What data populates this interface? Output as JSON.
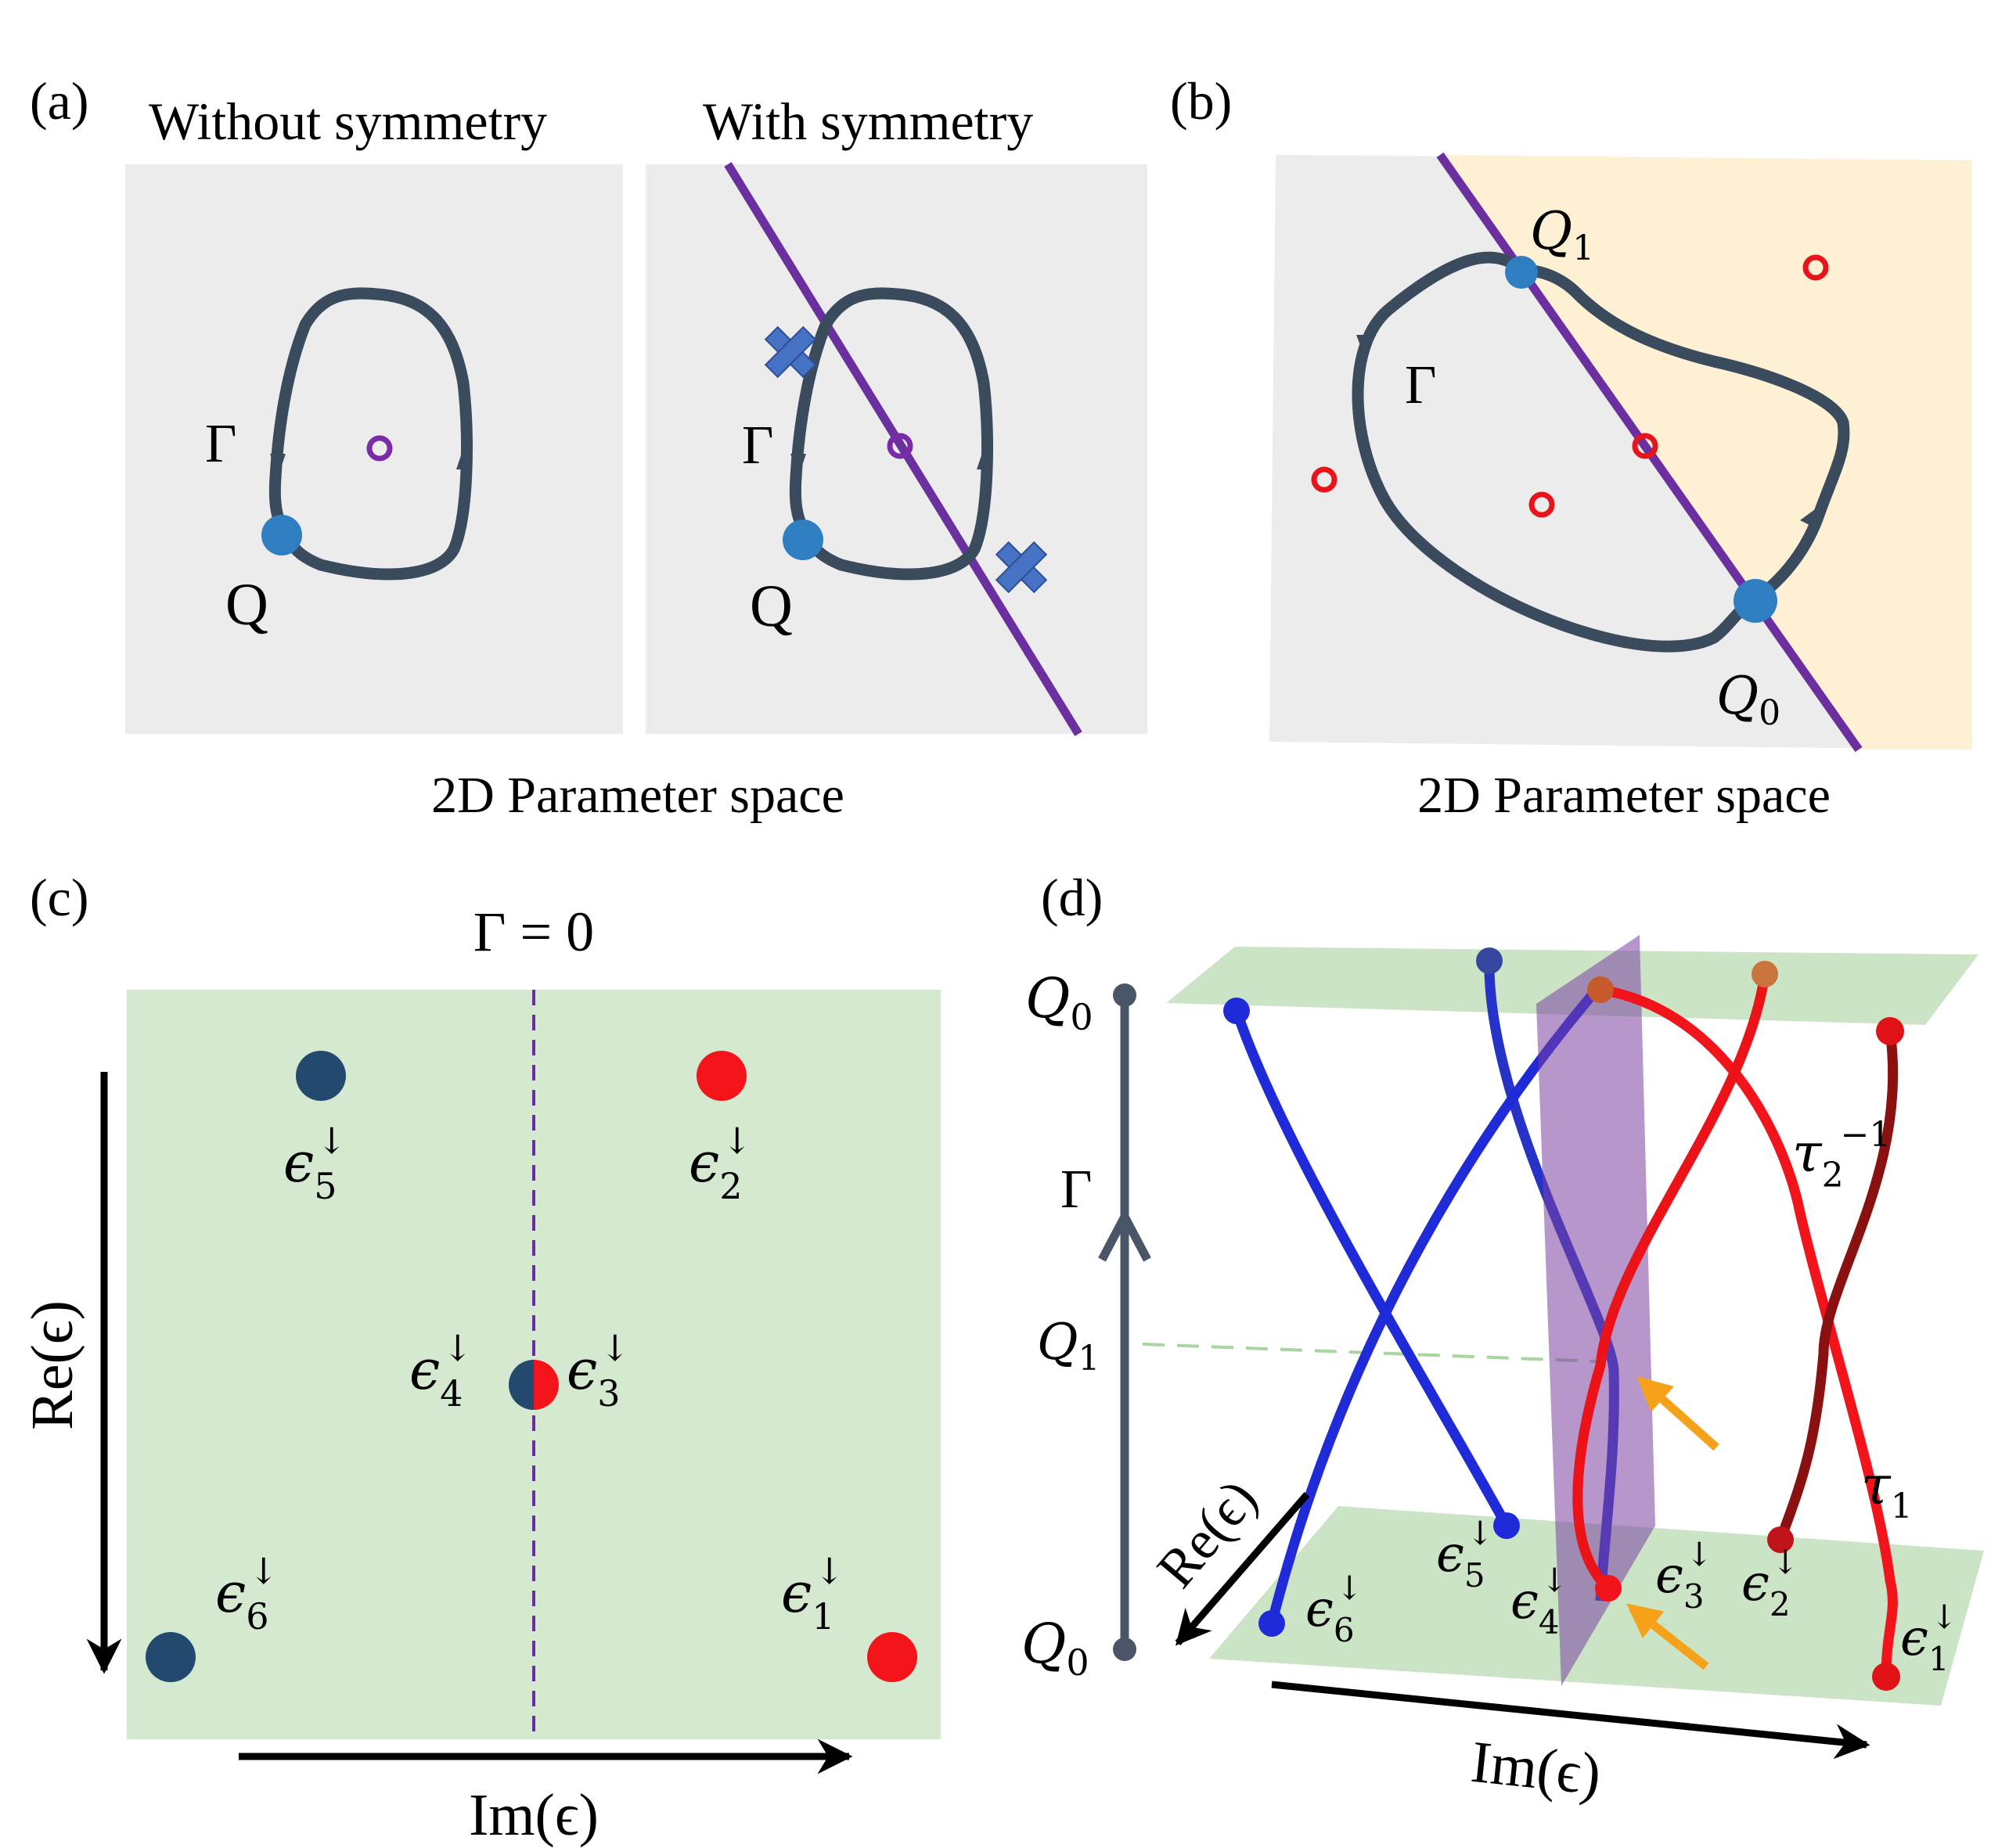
{
  "panel_a": {
    "label": "(a)",
    "left_title": "Without symmetry",
    "right_title": "With symmetry",
    "gamma": "Γ",
    "point": "Q",
    "caption": "2D Parameter space"
  },
  "panel_b": {
    "label": "(b)",
    "gamma": "Γ",
    "q1": "Q",
    "q1_sub": "1",
    "q0": "Q",
    "q0_sub": "0",
    "caption": "2D Parameter space"
  },
  "panel_c": {
    "label": "(c)",
    "title": "Γ = 0",
    "xlabel": "Im(ϵ)",
    "ylabel": "Re(ϵ)",
    "eigen": [
      {
        "sym": "ϵ",
        "sub": "5",
        "sup": "↓"
      },
      {
        "sym": "ϵ",
        "sub": "2",
        "sup": "↓"
      },
      {
        "sym": "ϵ",
        "sub": "4",
        "sup": "↓"
      },
      {
        "sym": "ϵ",
        "sub": "3",
        "sup": "↓"
      },
      {
        "sym": "ϵ",
        "sub": "6",
        "sup": "↓"
      },
      {
        "sym": "ϵ",
        "sub": "1",
        "sup": "↓"
      }
    ]
  },
  "panel_d": {
    "label": "(d)",
    "q0_top": "Q",
    "q0_top_sub": "0",
    "gamma": "Γ",
    "q1": "Q",
    "q1_sub": "1",
    "q0_bottom": "Q",
    "q0_bottom_sub": "0",
    "tau2": "τ",
    "tau2_sub": "2",
    "tau2_sup": "−1",
    "tau1": "τ",
    "tau1_sub": "1",
    "re_axis": "Re(ϵ)",
    "im_axis": "Im(ϵ)",
    "eigen": [
      {
        "sym": "ϵ",
        "sub": "6",
        "sup": "↓"
      },
      {
        "sym": "ϵ",
        "sub": "5",
        "sup": "↓"
      },
      {
        "sym": "ϵ",
        "sub": "4",
        "sup": "↓"
      },
      {
        "sym": "ϵ",
        "sub": "3",
        "sup": "↓"
      },
      {
        "sym": "ϵ",
        "sub": "2",
        "sup": "↓"
      },
      {
        "sym": "ϵ",
        "sub": "1",
        "sup": "↓"
      }
    ]
  },
  "colors": {
    "loop": "#3b4b5e",
    "symmetry_line": "#6b2fa0",
    "point_blue": "#2f7ec1",
    "marker_red": "#e8131b",
    "blue_state": "#24496e",
    "red_state": "#f5141a",
    "green_plane": "#d4e9d0",
    "yellow_region": "#fdf0d3",
    "gray_panel": "#ececec"
  }
}
